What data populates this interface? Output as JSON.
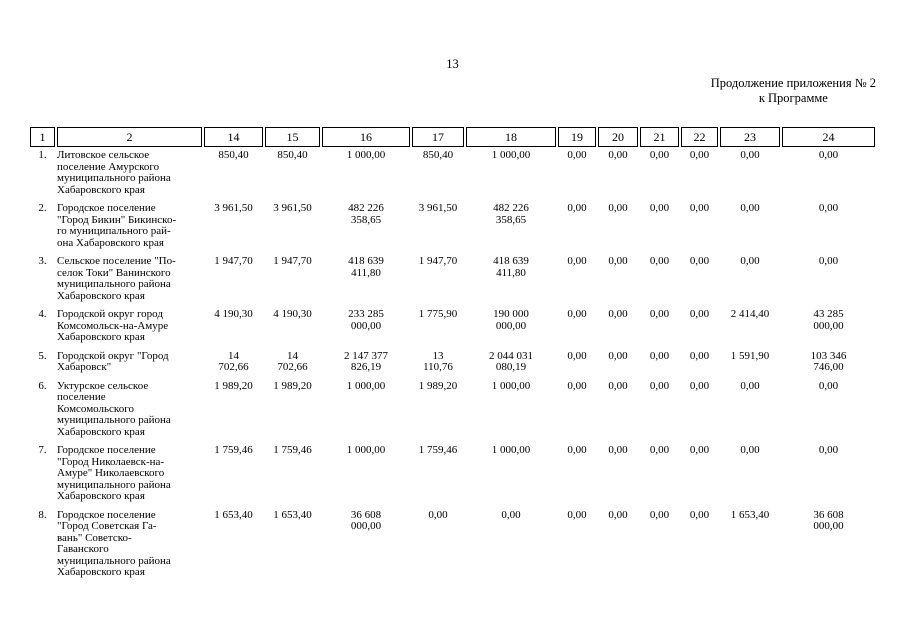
{
  "page": {
    "number": "13",
    "continuation_line1": "Продолжение приложения № 2",
    "continuation_line2": "к Программе"
  },
  "table": {
    "columns": [
      "1",
      "2",
      "14",
      "15",
      "16",
      "17",
      "18",
      "19",
      "20",
      "21",
      "22",
      "23",
      "24"
    ],
    "rows": [
      {
        "num": "1.",
        "name": "Литовское сельское\nпоселение Амурского\nмуниципального района\nХабаровского края",
        "values": [
          "850,40",
          "850,40",
          "1 000,00",
          "850,40",
          "1 000,00",
          "0,00",
          "0,00",
          "0,00",
          "0,00",
          "0,00",
          "0,00"
        ]
      },
      {
        "num": "2.",
        "name": "Городское поселение\n\"Город Бикин\" Бикинско-\nго муниципального рай-\nона Хабаровского края",
        "values": [
          "3 961,50",
          "3 961,50",
          "482 226\n358,65",
          "3 961,50",
          "482 226\n358,65",
          "0,00",
          "0,00",
          "0,00",
          "0,00",
          "0,00",
          "0,00"
        ]
      },
      {
        "num": "3.",
        "name": "Сельское поселение \"По-\nселок Токи\" Ванинского\nмуниципального района\nХабаровского края",
        "values": [
          "1 947,70",
          "1 947,70",
          "418 639\n411,80",
          "1 947,70",
          "418 639\n411,80",
          "0,00",
          "0,00",
          "0,00",
          "0,00",
          "0,00",
          "0,00"
        ]
      },
      {
        "num": "4.",
        "name": "Городской округ город\nКомсомольск-на-Амуре\nХабаровского края",
        "values": [
          "4 190,30",
          "4 190,30",
          "233 285\n000,00",
          "1 775,90",
          "190 000\n000,00",
          "0,00",
          "0,00",
          "0,00",
          "0,00",
          "2 414,40",
          "43 285\n000,00"
        ]
      },
      {
        "num": "5.",
        "name": "Городской округ \"Город\nХабаровск\"",
        "values": [
          "14\n702,66",
          "14\n702,66",
          "2 147 377\n826,19",
          "13\n110,76",
          "2 044 031\n080,19",
          "0,00",
          "0,00",
          "0,00",
          "0,00",
          "1 591,90",
          "103 346\n746,00"
        ]
      },
      {
        "num": "6.",
        "name": "Уктурское сельское\nпоселение\nКомсомольского\nмуниципального района\nХабаровского края",
        "values": [
          "1 989,20",
          "1 989,20",
          "1 000,00",
          "1 989,20",
          "1 000,00",
          "0,00",
          "0,00",
          "0,00",
          "0,00",
          "0,00",
          "0,00"
        ]
      },
      {
        "num": "7.",
        "name": "Городское поселение\n\"Город Николаевск-на-\nАмуре\" Николаевского\nмуниципального района\nХабаровского края",
        "values": [
          "1 759,46",
          "1 759,46",
          "1 000,00",
          "1 759,46",
          "1 000,00",
          "0,00",
          "0,00",
          "0,00",
          "0,00",
          "0,00",
          "0,00"
        ]
      },
      {
        "num": "8.",
        "name": "Городское поселение\n\"Город Советская Га-\nвань\" Советско-\nГаванского\nмуниципального района\nХабаровского края",
        "values": [
          "1 653,40",
          "1 653,40",
          "36 608\n000,00",
          "0,00",
          "0,00",
          "0,00",
          "0,00",
          "0,00",
          "0,00",
          "1 653,40",
          "36 608\n000,00"
        ]
      }
    ]
  }
}
